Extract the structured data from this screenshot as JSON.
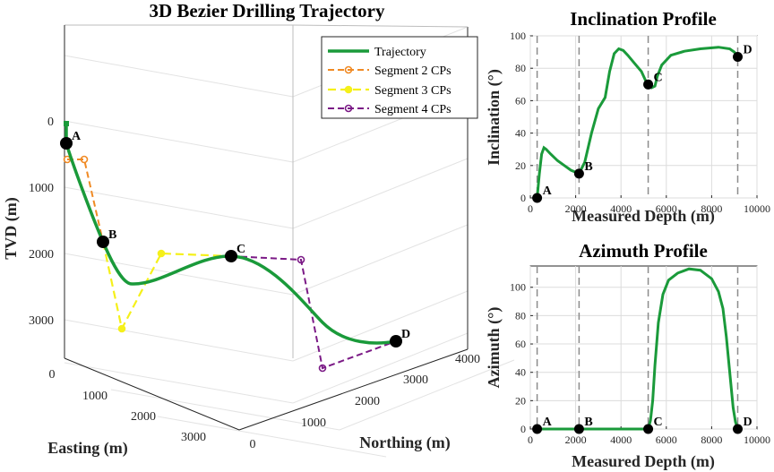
{
  "panels": {
    "main": {
      "title": "3D Bezier Drilling Trajectory",
      "xlabel": "Easting (m)",
      "ylabel": "Northing (m)",
      "zlabel": "TVD (m)"
    },
    "inclination": {
      "title": "Inclination Profile",
      "xlabel": "Measured Depth (m)",
      "ylabel": "Inclination (°)"
    },
    "azimuth": {
      "title": "Azimuth Profile",
      "xlabel": "Measured Depth (m)",
      "ylabel": "Azimuth (°)"
    }
  },
  "colors": {
    "trajectory": "#1a9a3a",
    "segment2": "#f08a24",
    "segment3": "#f5f01a",
    "segment4": "#7b1a86",
    "marker": "#000000",
    "grid": "#dcdcdc",
    "dashed": "#8c8c8c"
  },
  "chart_data": [
    {
      "type": "line",
      "projection": "3d",
      "title": "3D Bezier Drilling Trajectory",
      "xlabel": "Easting (m)",
      "ylabel": "Northing (m)",
      "zlabel": "TVD (m)",
      "xticks": [
        0,
        1000,
        2000,
        3000
      ],
      "yticks": [
        0,
        1000,
        2000,
        3000,
        4000
      ],
      "zticks": [
        0,
        1000,
        2000,
        3000
      ],
      "zlim": [
        0,
        3500
      ],
      "z_reversed": true,
      "legend": {
        "placement": "top-right",
        "entries": [
          "Trajectory",
          "Segment 2 CPs",
          "Segment 3 CPs",
          "Segment 4 CPs"
        ]
      },
      "key_points": [
        {
          "label": "A",
          "easting": 0,
          "northing": 0,
          "tvd": 300
        },
        {
          "label": "B",
          "easting": 1100,
          "northing": 0,
          "tvd": 1800
        },
        {
          "label": "C",
          "easting": 2600,
          "northing": 2000,
          "tvd": 2000
        },
        {
          "label": "D",
          "easting": 2600,
          "northing": 3900,
          "tvd": 3000
        }
      ],
      "series": [
        {
          "name": "Trajectory"
        },
        {
          "name": "Segment 2 CPs"
        },
        {
          "name": "Segment 3 CPs"
        },
        {
          "name": "Segment 4 CPs"
        }
      ]
    },
    {
      "type": "line",
      "title": "Inclination Profile",
      "xlabel": "Measured Depth (m)",
      "ylabel": "Inclination (°)",
      "xlim": [
        0,
        10000
      ],
      "ylim": [
        0,
        100
      ],
      "xticks": [
        0,
        2000,
        4000,
        6000,
        8000,
        10000
      ],
      "yticks": [
        0,
        20,
        40,
        60,
        80,
        100
      ],
      "grid": true,
      "segment_boundaries": [
        300,
        2150,
        5200,
        9150
      ],
      "key_points": [
        {
          "label": "A",
          "x": 300,
          "y": 0
        },
        {
          "label": "B",
          "x": 2150,
          "y": 15
        },
        {
          "label": "C",
          "x": 5200,
          "y": 70
        },
        {
          "label": "D",
          "x": 9150,
          "y": 87
        }
      ],
      "x": [
        300,
        400,
        500,
        600,
        700,
        900,
        1200,
        1500,
        1800,
        2150,
        2400,
        2700,
        3000,
        3300,
        3500,
        3700,
        3900,
        4100,
        4300,
        4600,
        4900,
        5100,
        5200,
        5350,
        5500,
        5600,
        5800,
        6200,
        6800,
        7500,
        8300,
        8800,
        9000,
        9150
      ],
      "y": [
        0,
        15,
        27,
        31,
        30,
        27,
        23,
        20,
        17,
        15,
        22,
        40,
        55,
        62,
        78,
        89,
        92,
        91,
        88,
        83,
        78,
        72,
        70,
        68,
        69,
        75,
        82,
        88,
        90.5,
        92,
        93,
        92,
        90,
        87
      ]
    },
    {
      "type": "line",
      "title": "Azimuth Profile",
      "xlabel": "Measured Depth (m)",
      "ylabel": "Azimuth (°)",
      "xlim": [
        0,
        10000
      ],
      "ylim": [
        0,
        115
      ],
      "xticks": [
        0,
        2000,
        4000,
        6000,
        8000,
        10000
      ],
      "yticks": [
        0,
        20,
        40,
        60,
        80,
        100
      ],
      "grid": true,
      "segment_boundaries": [
        300,
        2150,
        5200,
        9150
      ],
      "key_points": [
        {
          "label": "A",
          "x": 300,
          "y": 0
        },
        {
          "label": "B",
          "x": 2150,
          "y": 0
        },
        {
          "label": "C",
          "x": 5200,
          "y": 0
        },
        {
          "label": "D",
          "x": 9150,
          "y": 0
        }
      ],
      "x": [
        300,
        2150,
        4000,
        5200,
        5300,
        5400,
        5500,
        5650,
        5850,
        6100,
        6500,
        7000,
        7500,
        8000,
        8300,
        8500,
        8650,
        8800,
        8950,
        9050,
        9150
      ],
      "y": [
        0,
        0,
        0,
        0,
        6,
        20,
        45,
        75,
        95,
        105,
        110,
        113,
        112,
        106,
        97,
        85,
        65,
        40,
        15,
        5,
        0
      ]
    }
  ]
}
